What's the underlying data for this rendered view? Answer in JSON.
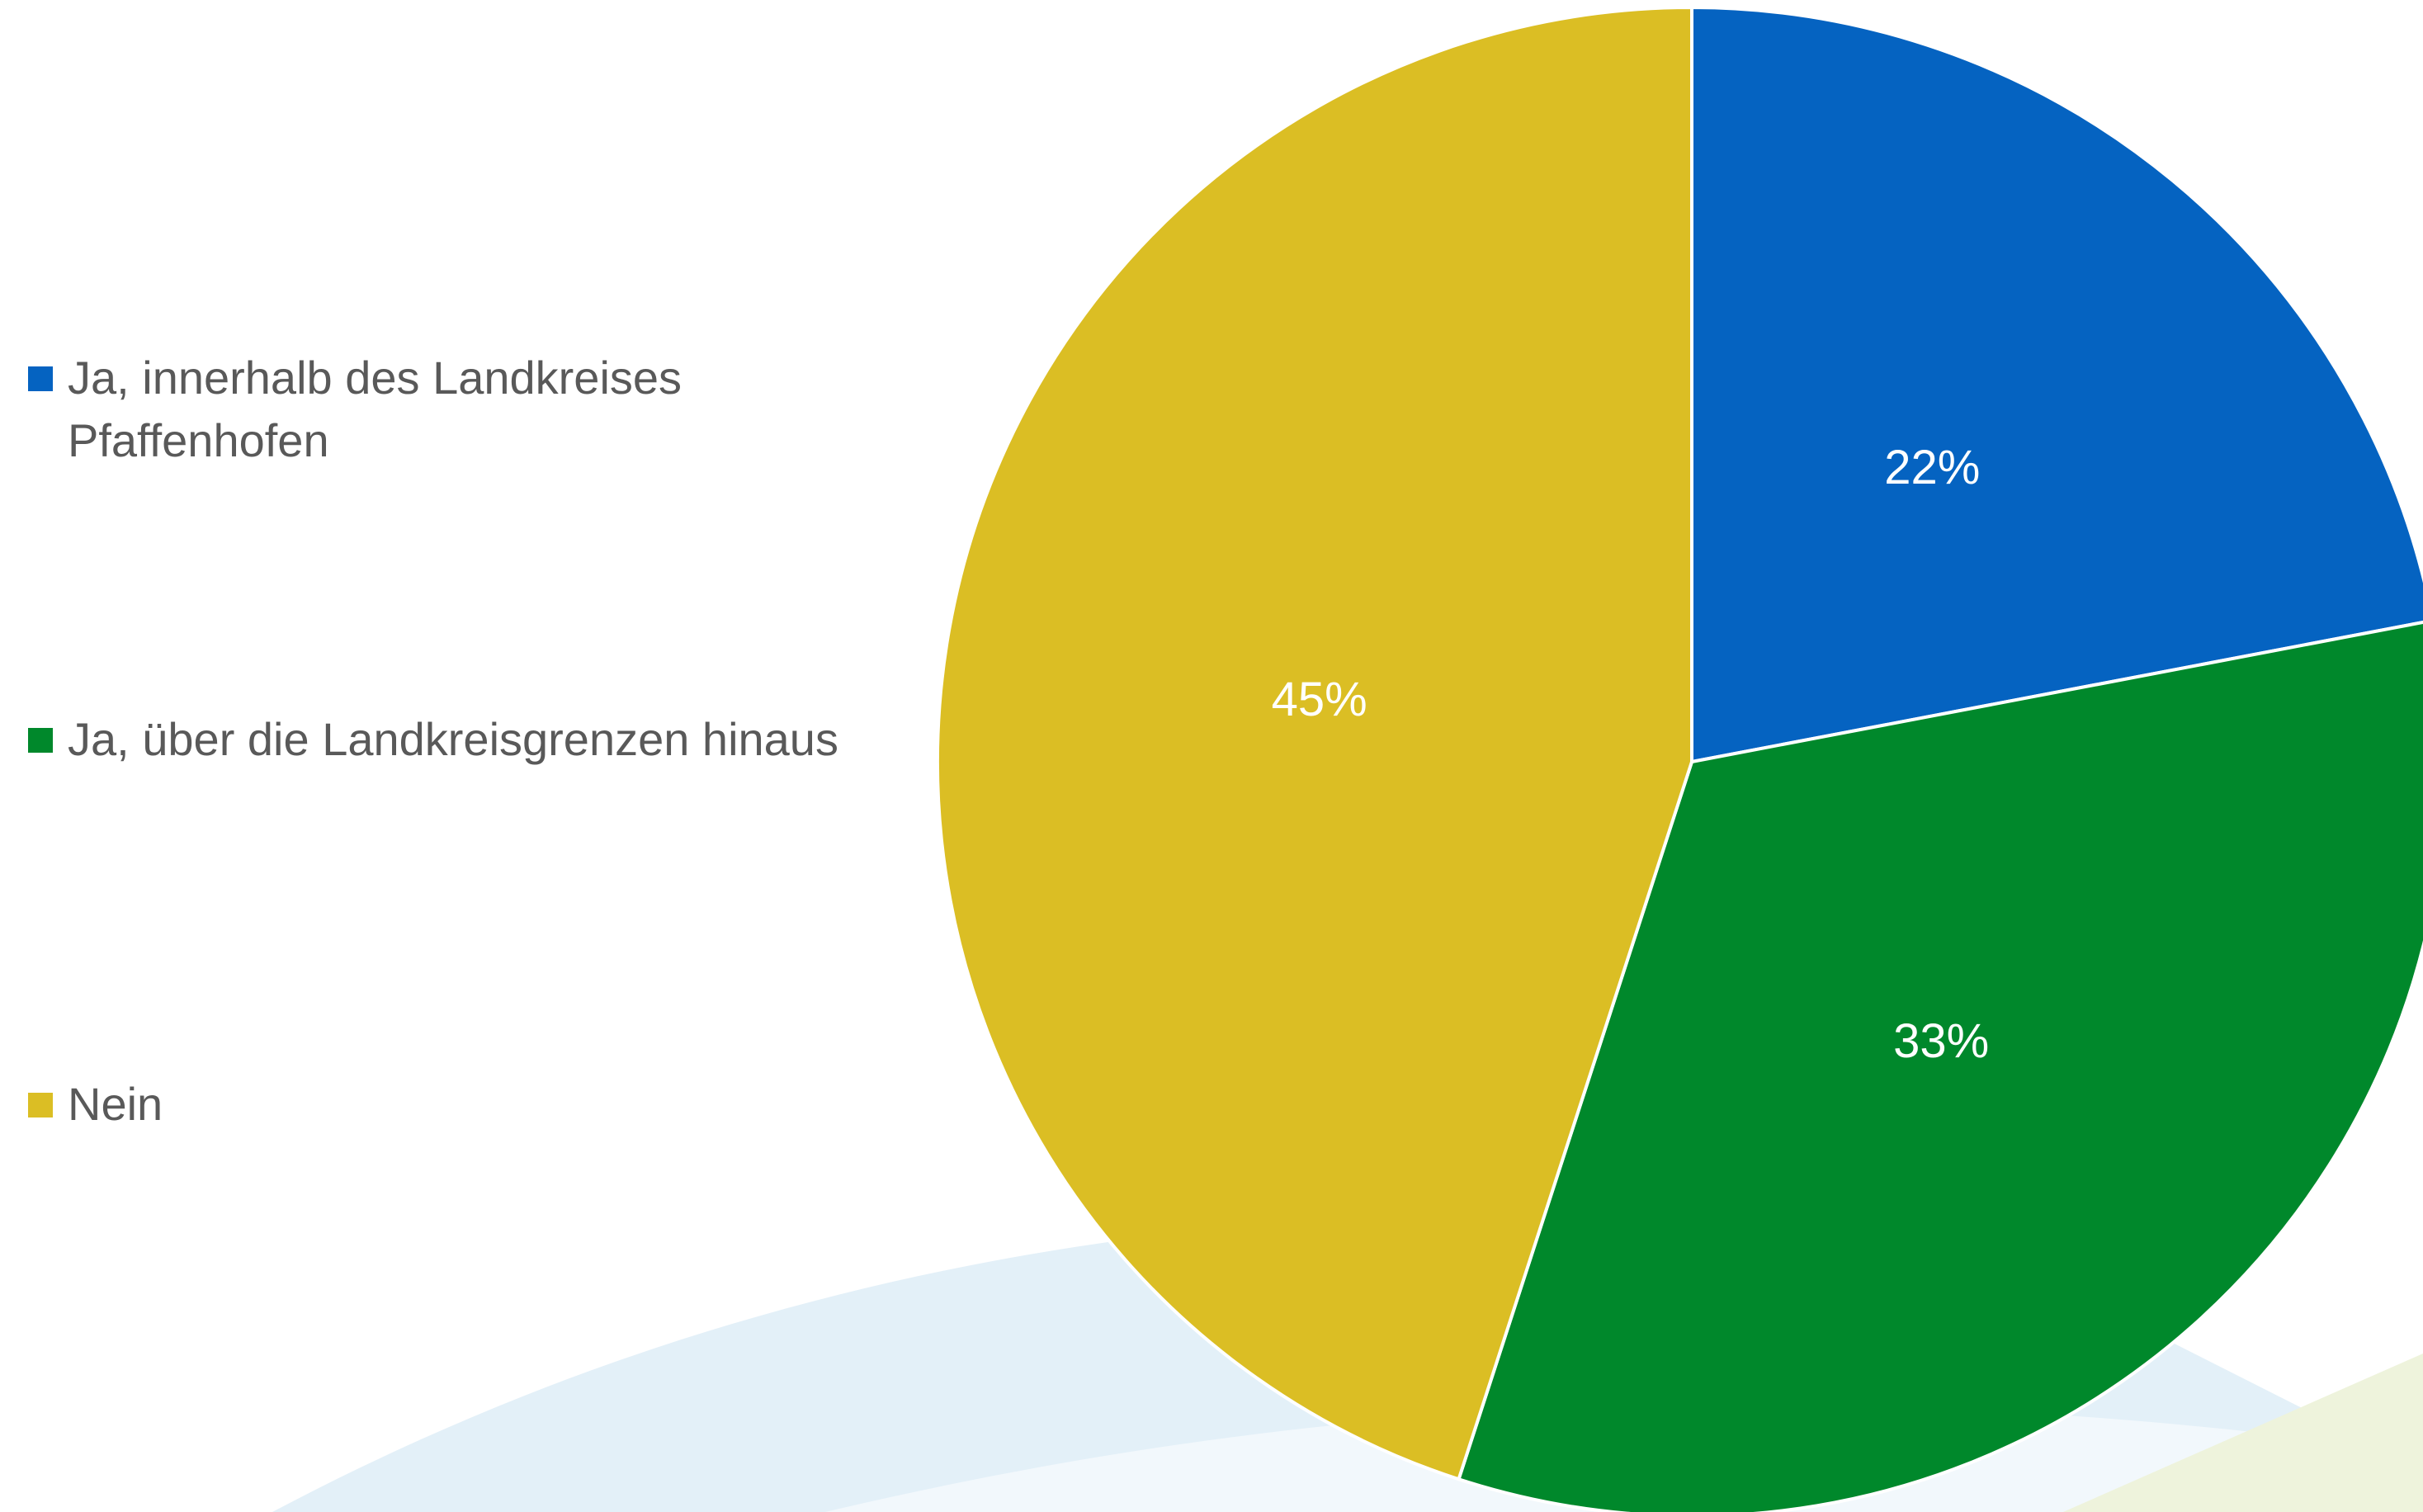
{
  "chart_data": {
    "type": "pie",
    "categories": [
      "Ja, innerhalb des Landkreises Pfaffenhofen",
      "Ja, über die Landkreisgrenzen hinaus",
      "Nein"
    ],
    "values": [
      22,
      33,
      45
    ],
    "value_labels": [
      "22%",
      "33%",
      "45%"
    ],
    "colors": [
      "#0563c1",
      "#00882b",
      "#dbbe24"
    ],
    "legend": "left"
  }
}
